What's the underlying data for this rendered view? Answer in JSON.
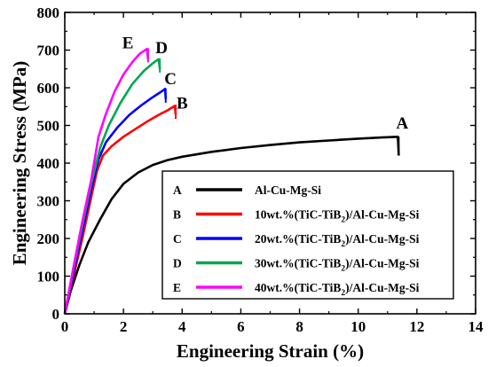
{
  "chart_data": {
    "type": "line",
    "xlabel": "Engineering Strain (%)",
    "ylabel": "Engineering Stress (MPa)",
    "xlim": [
      0,
      14
    ],
    "ylim": [
      0,
      800
    ],
    "xticks": [
      "0",
      "2",
      "4",
      "6",
      "8",
      "10",
      "12",
      "14"
    ],
    "yticks": [
      "0",
      "100",
      "200",
      "300",
      "400",
      "500",
      "600",
      "700",
      "800"
    ],
    "legend_placement": "bottom-right",
    "grid": false,
    "series": [
      {
        "key": "A",
        "name": "Al-Cu-Mg-Si",
        "color": "#000000",
        "points": [
          [
            0,
            0
          ],
          [
            0.2,
            60
          ],
          [
            0.5,
            130
          ],
          [
            0.8,
            190
          ],
          [
            1.2,
            250
          ],
          [
            1.6,
            305
          ],
          [
            2.0,
            345
          ],
          [
            2.5,
            375
          ],
          [
            3.0,
            395
          ],
          [
            3.5,
            408
          ],
          [
            4.0,
            417
          ],
          [
            5.0,
            430
          ],
          [
            6.0,
            440
          ],
          [
            7.0,
            448
          ],
          [
            8.0,
            455
          ],
          [
            9.0,
            460
          ],
          [
            10.0,
            465
          ],
          [
            10.8,
            468
          ],
          [
            11.35,
            470
          ],
          [
            11.38,
            420
          ]
        ],
        "fracture": [
          11.38,
          470
        ],
        "label_at": [
          11.5,
          492
        ]
      },
      {
        "key": "B",
        "name": "10wt.%(TiC-TiB2)/Al-Cu-Mg-Si",
        "name_main": "10wt.%(TiC-TiB",
        "name_sub": "2",
        "name_tail": ")/Al-Cu-Mg-Si",
        "color": "#ff0000",
        "points": [
          [
            0,
            0
          ],
          [
            0.3,
            100
          ],
          [
            0.6,
            200
          ],
          [
            0.9,
            310
          ],
          [
            1.1,
            380
          ],
          [
            1.3,
            420
          ],
          [
            1.6,
            445
          ],
          [
            2.0,
            470
          ],
          [
            2.4,
            490
          ],
          [
            2.8,
            510
          ],
          [
            3.2,
            528
          ],
          [
            3.5,
            540
          ],
          [
            3.75,
            552
          ],
          [
            3.78,
            530
          ]
        ],
        "fracture": [
          3.78,
          555
        ],
        "label_at": [
          4.0,
          545
        ]
      },
      {
        "key": "C",
        "name": "20wt.%(TiC-TiB2)/Al-Cu-Mg-Si",
        "name_main": "20wt.%(TiC-TiB",
        "name_sub": "2",
        "name_tail": ")/Al-Cu-Mg-Si",
        "color": "#0000ff",
        "points": [
          [
            0,
            0
          ],
          [
            0.3,
            110
          ],
          [
            0.6,
            220
          ],
          [
            0.9,
            330
          ],
          [
            1.15,
            410
          ],
          [
            1.4,
            455
          ],
          [
            1.8,
            495
          ],
          [
            2.2,
            528
          ],
          [
            2.6,
            553
          ],
          [
            3.0,
            575
          ],
          [
            3.3,
            590
          ],
          [
            3.42,
            597
          ],
          [
            3.44,
            570
          ]
        ],
        "fracture": [
          3.44,
          598
        ],
        "label_at": [
          3.6,
          610
        ]
      },
      {
        "key": "D",
        "name": "30wt.%(TiC-TiB2)/Al-Cu-Mg-Si",
        "name_main": "30wt.%(TiC-TiB",
        "name_sub": "2",
        "name_tail": ")/Al-Cu-Mg-Si",
        "color": "#00a651",
        "points": [
          [
            0,
            0
          ],
          [
            0.3,
            120
          ],
          [
            0.6,
            235
          ],
          [
            0.9,
            345
          ],
          [
            1.2,
            440
          ],
          [
            1.5,
            500
          ],
          [
            1.9,
            560
          ],
          [
            2.3,
            610
          ],
          [
            2.7,
            645
          ],
          [
            3.0,
            665
          ],
          [
            3.2,
            676
          ],
          [
            3.24,
            650
          ]
        ],
        "fracture": [
          3.24,
          678
        ],
        "label_at": [
          3.3,
          692
        ]
      },
      {
        "key": "E",
        "name": "40wt.%(TiC-TiB2)/Al-Cu-Mg-Si",
        "name_main": "40wt.%(TiC-TiB",
        "name_sub": "2",
        "name_tail": ")/Al-Cu-Mg-Si",
        "color": "#ff00ff",
        "points": [
          [
            0,
            0
          ],
          [
            0.3,
            125
          ],
          [
            0.6,
            245
          ],
          [
            0.9,
            355
          ],
          [
            1.15,
            470
          ],
          [
            1.4,
            530
          ],
          [
            1.7,
            590
          ],
          [
            2.0,
            635
          ],
          [
            2.3,
            668
          ],
          [
            2.55,
            690
          ],
          [
            2.8,
            703
          ],
          [
            2.84,
            675
          ]
        ],
        "fracture": [
          2.84,
          705
        ],
        "label_at": [
          2.15,
          705
        ]
      }
    ]
  }
}
